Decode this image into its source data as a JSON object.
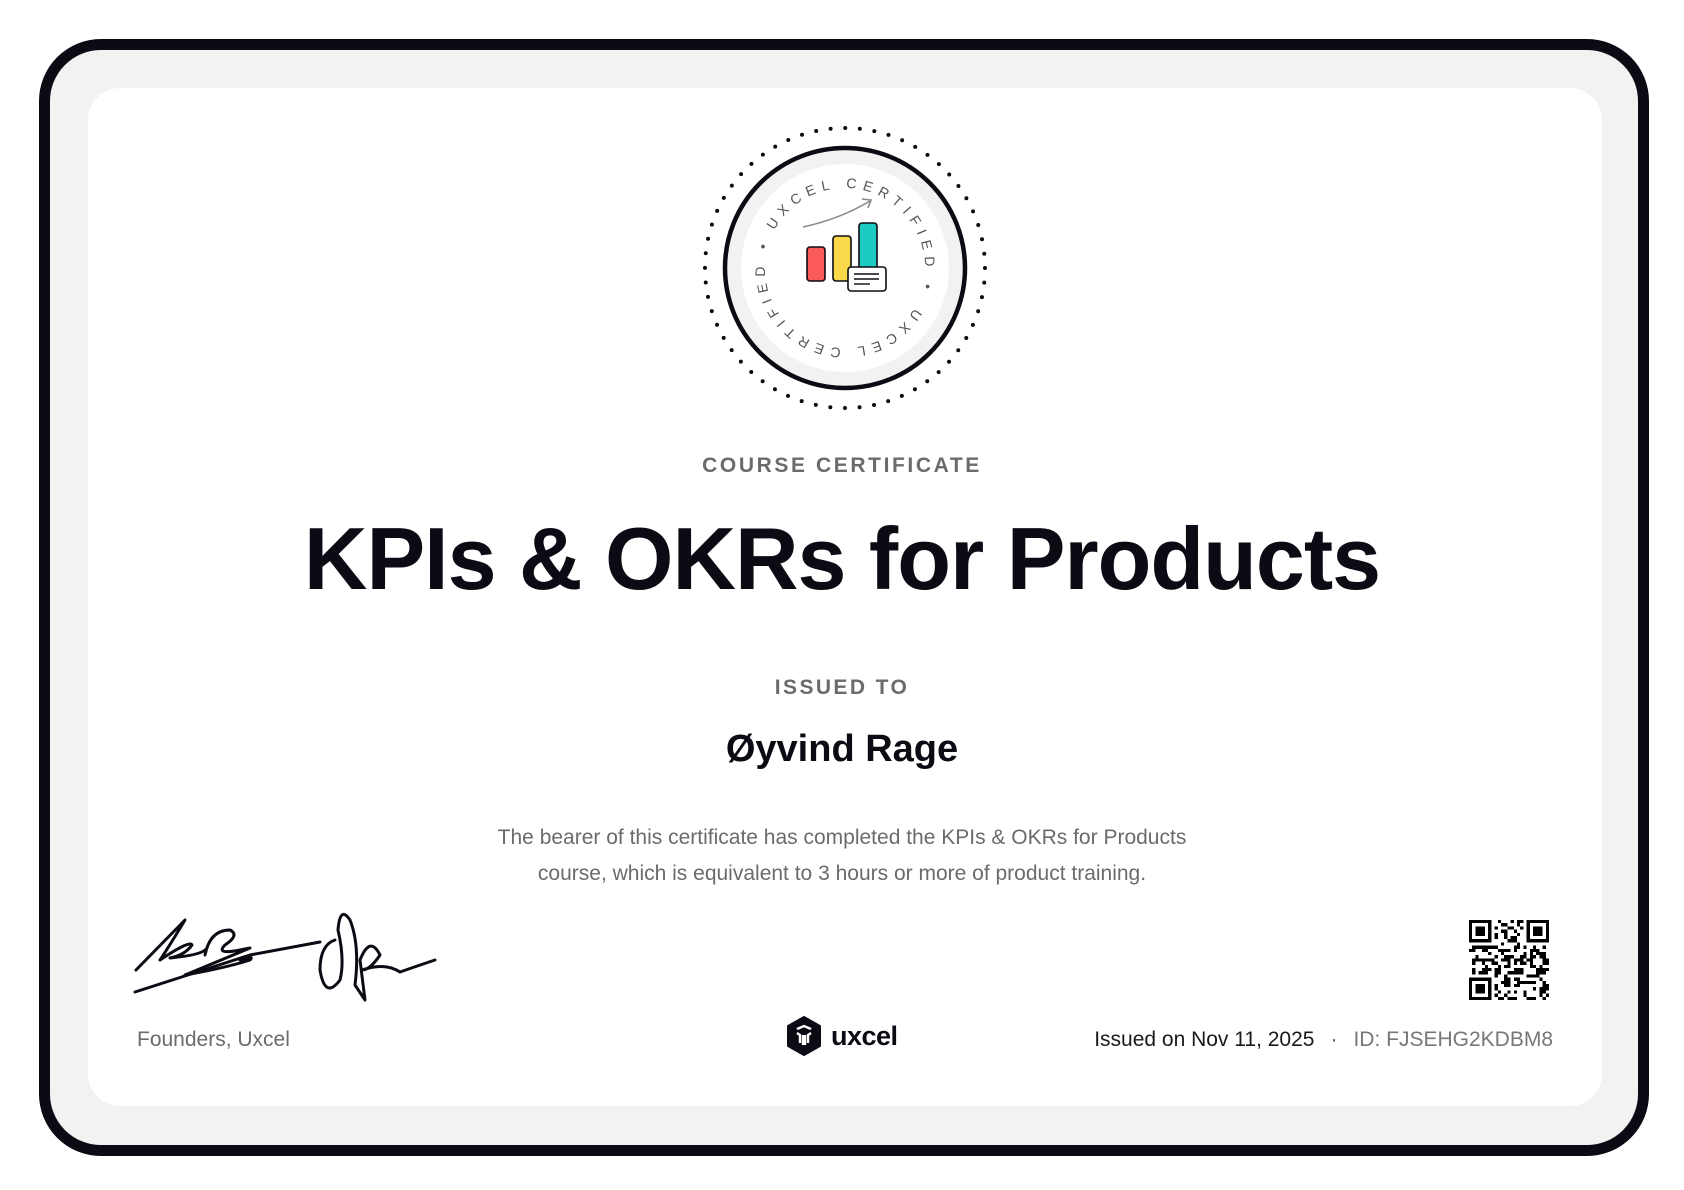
{
  "badge": {
    "ring_text": "UXCEL CERTIFIED • UXCEL CERTIFIED •",
    "bar_colors": [
      "#fa5a5a",
      "#f9d849",
      "#1ccbc1"
    ],
    "icon": "bar-chart-growth-icon"
  },
  "certificate": {
    "eyebrow": "COURSE CERTIFICATE",
    "title": "KPIs & OKRs for Products",
    "issued_to_label": "ISSUED TO",
    "recipient": "Øyvind Rage",
    "description_line1": "The bearer of this certificate has completed the KPIs & OKRs for Products",
    "description_line2": "course, which is equivalent to 3 hours or more of product training."
  },
  "footer": {
    "signature_label": "Founders, Uxcel",
    "logo_text": "uxcel",
    "issued_on": "Issued on Nov 11, 2025",
    "separator": "·",
    "credential_id": "ID: FJSEHG2KDBM8"
  },
  "colors": {
    "frame": "#0b0b14",
    "muted_text": "#6b6b6b",
    "frame_bg": "#f2f2f2"
  }
}
